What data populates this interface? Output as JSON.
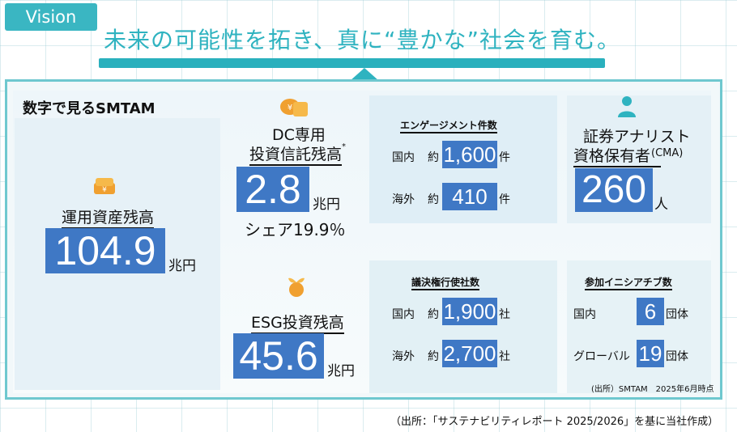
{
  "header": {
    "tab": "Vision",
    "tagline": "未来の可能性を拓き、真に“豊かな”社会を育む。"
  },
  "panel": {
    "title": "数字で見るSMTAM",
    "aum": {
      "label": "運用資産残高",
      "value": "104.9",
      "unit": "兆円"
    },
    "dc": {
      "label_line1": "DC専用",
      "label_line2": "投資信託残高",
      "note_mark": "*",
      "value": "2.8",
      "unit": "兆円",
      "share": "シェア19.9％"
    },
    "esg": {
      "label": "ESG投資残高",
      "value": "45.6",
      "unit": "兆円"
    },
    "engagement": {
      "title": "エンゲージメント件数",
      "rows": [
        {
          "region": "国内",
          "approx": "約",
          "value": "1,600",
          "unit": "件"
        },
        {
          "region": "海外",
          "approx": "約",
          "value": "410",
          "unit": "件"
        }
      ]
    },
    "cma": {
      "label_line1": "証券アナリスト",
      "label_line2": "資格保有者",
      "label_suffix": "(CMA)",
      "value": "260",
      "unit": "人"
    },
    "voting": {
      "title": "議決権行使社数",
      "rows": [
        {
          "region": "国内",
          "approx": "約",
          "value": "1,900",
          "unit": "社"
        },
        {
          "region": "海外",
          "approx": "約",
          "value": "2,700",
          "unit": "社"
        }
      ]
    },
    "initiatives": {
      "title": "参加イニシアチブ数",
      "rows": [
        {
          "region": "国内",
          "value": "6",
          "unit": "団体"
        },
        {
          "region": "グローバル",
          "value": "19",
          "unit": "団体"
        }
      ]
    },
    "source_note": "(出所）SMTAM　2025年6月時点"
  },
  "footer": {
    "citation": "（出所：「サステナビリティレポート 2025/2026」を基に当社作成）"
  },
  "colors": {
    "accent": "#2fb3c0",
    "value_box": "#3f78c5",
    "panel_border": "#6fc8cf"
  },
  "icons": [
    "coins-icon",
    "piggy-icon",
    "sprout-coin-icon",
    "person-icon"
  ]
}
